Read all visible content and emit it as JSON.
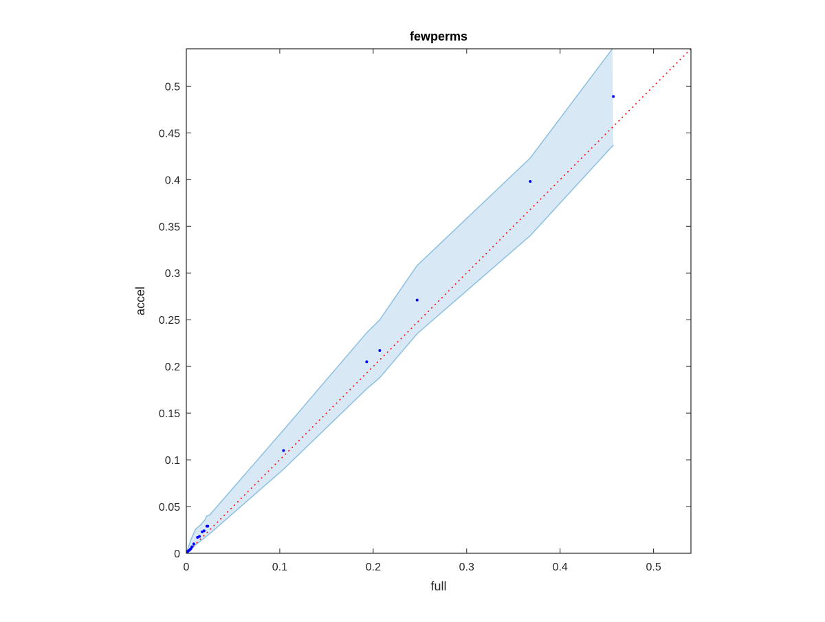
{
  "chart_data": {
    "type": "scatter",
    "title": "fewperms",
    "xlabel": "full",
    "ylabel": "accel",
    "xlim": [
      0,
      0.54
    ],
    "ylim": [
      0,
      0.54
    ],
    "xticks": [
      0,
      0.1,
      0.2,
      0.3,
      0.4,
      0.5
    ],
    "xtick_labels": [
      "0",
      "0.1",
      "0.2",
      "0.3",
      "0.4",
      "0.5"
    ],
    "yticks": [
      0,
      0.05,
      0.1,
      0.15,
      0.2,
      0.25,
      0.3,
      0.35,
      0.4,
      0.45,
      0.5
    ],
    "ytick_labels": [
      "0",
      "0.05",
      "0.1",
      "0.15",
      "0.2",
      "0.25",
      "0.3",
      "0.35",
      "0.4",
      "0.45",
      "0.5"
    ],
    "grid": false,
    "series": [
      {
        "kind": "points",
        "color": "#0000ff",
        "x": [
          0.0005,
          0.001,
          0.0015,
          0.002,
          0.003,
          0.004,
          0.005,
          0.006,
          0.008,
          0.012,
          0.014,
          0.017,
          0.019,
          0.022,
          0.023,
          0.104,
          0.193,
          0.207,
          0.247,
          0.368,
          0.457
        ],
        "y": [
          0.0005,
          0.0012,
          0.002,
          0.0025,
          0.003,
          0.004,
          0.005,
          0.007,
          0.01,
          0.017,
          0.018,
          0.023,
          0.024,
          0.029,
          0.029,
          0.11,
          0.205,
          0.217,
          0.271,
          0.398,
          0.489
        ]
      },
      {
        "kind": "band",
        "fill": "#d9e8f5",
        "edge": "#8cc0e0",
        "upper": [
          [
            0,
            0
          ],
          [
            0.005,
            0.015
          ],
          [
            0.01,
            0.026
          ],
          [
            0.015,
            0.03
          ],
          [
            0.02,
            0.036
          ],
          [
            0.022,
            0.04
          ],
          [
            0.025,
            0.041
          ],
          [
            0.104,
            0.132
          ],
          [
            0.193,
            0.236
          ],
          [
            0.207,
            0.25
          ],
          [
            0.247,
            0.308
          ],
          [
            0.368,
            0.423
          ],
          [
            0.456,
            0.54
          ]
        ],
        "lower": [
          [
            0,
            0
          ],
          [
            0.01,
            0.009
          ],
          [
            0.025,
            0.021
          ],
          [
            0.104,
            0.09
          ],
          [
            0.193,
            0.176
          ],
          [
            0.207,
            0.188
          ],
          [
            0.247,
            0.235
          ],
          [
            0.368,
            0.34
          ],
          [
            0.457,
            0.437
          ]
        ]
      },
      {
        "kind": "reference-line",
        "color": "#ff0000",
        "style": "dotted",
        "x": [
          0,
          0.54
        ],
        "y": [
          0,
          0.54
        ]
      }
    ]
  }
}
